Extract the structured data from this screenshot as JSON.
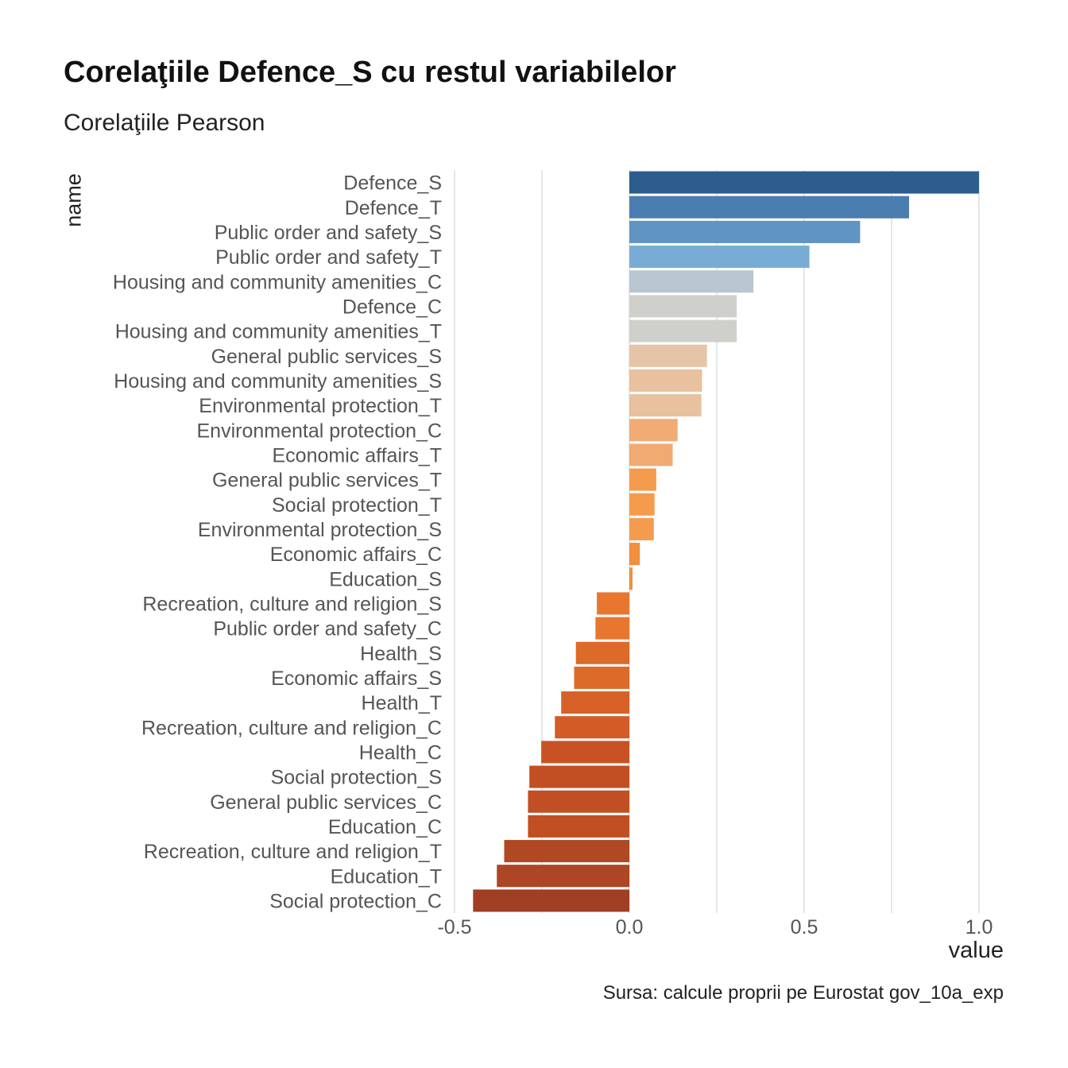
{
  "chart_data": {
    "type": "bar",
    "orientation": "horizontal",
    "title": "Corelaţiile Defence_S cu restul variabilelor",
    "subtitle": "Corelaţiile Pearson",
    "xlabel": "value",
    "ylabel": "name",
    "caption": "Sursa: calcule proprii pe Eurostat gov_10a_exp",
    "xlim": [
      -0.5,
      1.0
    ],
    "xticks": [
      -0.5,
      0.0,
      0.5,
      1.0
    ],
    "xtick_labels": [
      "-0.5",
      "0.0",
      "0.5",
      "1.0"
    ],
    "grid": "vertical",
    "legend": "none",
    "categories": [
      "Defence_S",
      "Defence_T",
      "Public order and safety_S",
      "Public order and safety_T",
      "Housing and community amenities_C",
      "Defence_C",
      "Housing and community amenities_T",
      "General public services_S",
      "Housing and community amenities_S",
      "Environmental protection_T",
      "Environmental protection_C",
      "Economic affairs_T",
      "General public services_T",
      "Social protection_T",
      "Environmental protection_S",
      "Economic affairs_C",
      "Education_S",
      "Recreation, culture and religion_S",
      "Public order and safety_C",
      "Health_S",
      "Economic affairs_S",
      "Health_T",
      "Recreation, culture and religion_C",
      "Health_C",
      "Social protection_S",
      "General public services_C",
      "Education_C",
      "Recreation, culture and religion_T",
      "Education_T",
      "Social protection_C"
    ],
    "values": [
      1.0,
      0.8,
      0.66,
      0.515,
      0.355,
      0.307,
      0.307,
      0.222,
      0.208,
      0.206,
      0.138,
      0.124,
      0.077,
      0.072,
      0.07,
      0.03,
      0.009,
      -0.093,
      -0.097,
      -0.153,
      -0.158,
      -0.195,
      -0.213,
      -0.252,
      -0.286,
      -0.29,
      -0.29,
      -0.358,
      -0.379,
      -0.447
    ],
    "colors": [
      "#2c5d8c",
      "#4a7daf",
      "#6094c2",
      "#79acd4",
      "#bac6cf",
      "#cfd0cb",
      "#cfd0cb",
      "#e5c4a8",
      "#e8c19e",
      "#e8c19e",
      "#f1ab74",
      "#f1aa72",
      "#f49b4e",
      "#f49b4e",
      "#f49b4e",
      "#f08f3c",
      "#f08f3c",
      "#e7772f",
      "#e7772f",
      "#dd6a29",
      "#dd6a29",
      "#d76028",
      "#d35b25",
      "#c95224",
      "#c24f23",
      "#c24f23",
      "#c24f23",
      "#b04824",
      "#ad4624",
      "#a03f24"
    ],
    "label_color": "#555555",
    "grid_color": "#dddddd"
  }
}
